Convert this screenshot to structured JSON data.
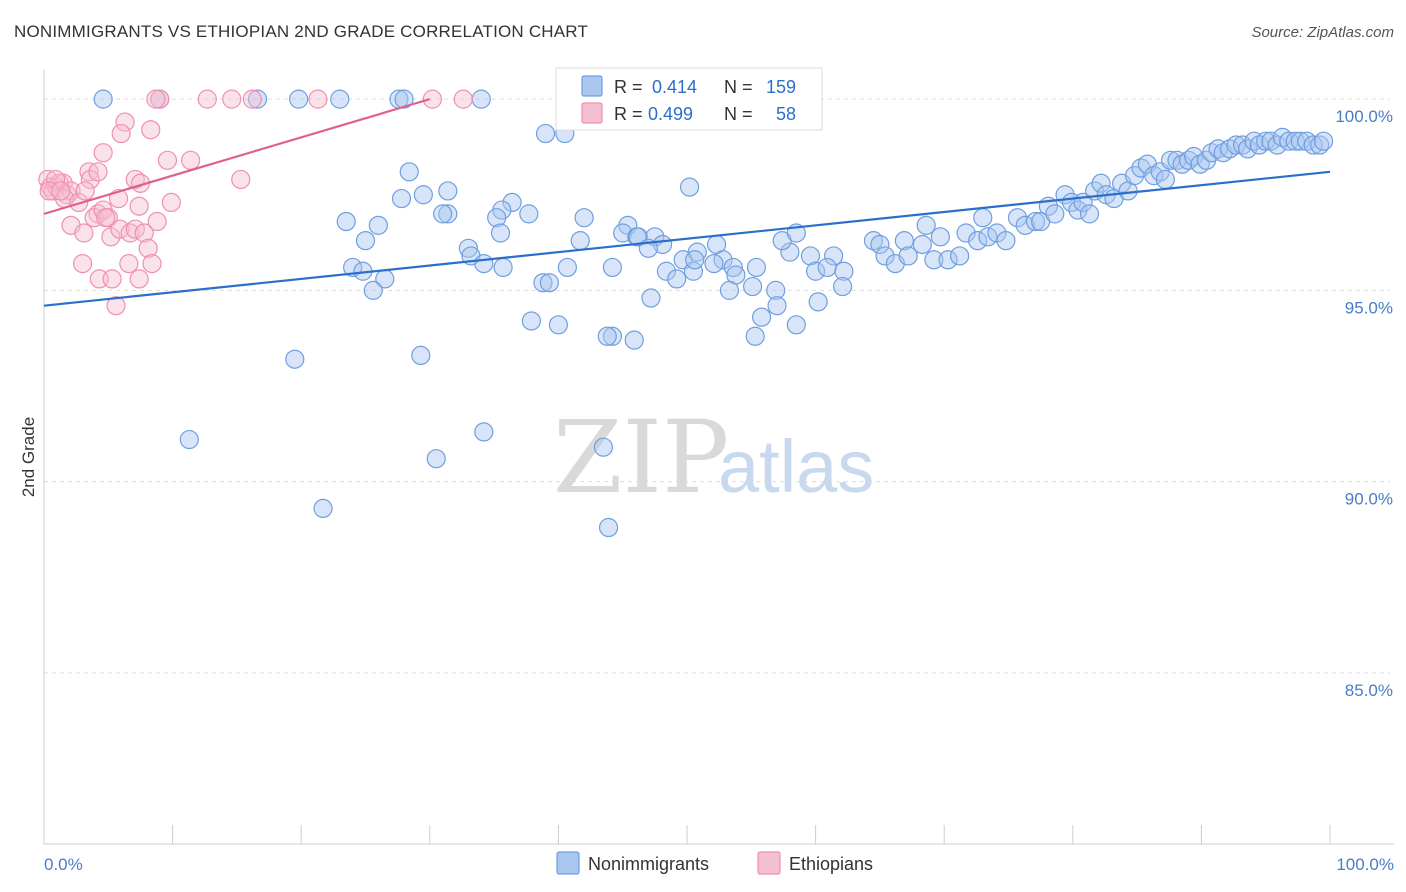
{
  "chart_data": {
    "type": "scatter",
    "title": "NONIMMIGRANTS VS ETHIOPIAN 2ND GRADE CORRELATION CHART",
    "source": "Source: ZipAtlas.com",
    "xlabel": "",
    "ylabel": "2nd Grade",
    "xlim": [
      0,
      100
    ],
    "ylim": [
      80.5,
      100.5
    ],
    "x_tick_labels": [
      "0.0%",
      "100.0%"
    ],
    "y_ticks": [
      {
        "value": 100,
        "label": "100.0%"
      },
      {
        "value": 95,
        "label": "95.0%"
      },
      {
        "value": 90,
        "label": "90.0%"
      },
      {
        "value": 85,
        "label": "85.0%"
      }
    ],
    "grid": true,
    "watermark": {
      "part1": "ZIP",
      "part2": "atlas"
    },
    "legend": {
      "r_label": "R =",
      "n_label": "N =",
      "entries": [
        {
          "name": "Nonimmigrants",
          "r": "0.414",
          "n": "159"
        },
        {
          "name": "Ethiopians",
          "r": "0.499",
          "n": "58"
        }
      ]
    },
    "series": [
      {
        "name": "Nonimmigrants",
        "color": "#6f9fe0",
        "fill": "#a9c6ef",
        "line_color": "#2a6fcc",
        "trend": {
          "x": [
            0,
            100
          ],
          "y": [
            94.6,
            98.1
          ]
        },
        "points": [
          [
            4.6,
            100
          ],
          [
            9,
            100
          ],
          [
            16.6,
            100
          ],
          [
            19.8,
            100
          ],
          [
            23,
            100
          ],
          [
            27.6,
            100
          ],
          [
            28,
            100
          ],
          [
            34,
            100
          ],
          [
            40.5,
            99.1
          ],
          [
            39,
            99.1
          ],
          [
            28.4,
            98.1
          ],
          [
            29.5,
            97.5
          ],
          [
            27.8,
            97.4
          ],
          [
            36.4,
            97.3
          ],
          [
            37.7,
            97.0
          ],
          [
            35.6,
            97.1
          ],
          [
            31.4,
            97.0
          ],
          [
            35.2,
            96.9
          ],
          [
            23.5,
            96.8
          ],
          [
            26.0,
            96.7
          ],
          [
            25.0,
            96.3
          ],
          [
            33.0,
            96.1
          ],
          [
            35.5,
            96.5
          ],
          [
            42,
            96.9
          ],
          [
            45.4,
            96.7
          ],
          [
            45,
            96.5
          ],
          [
            46.1,
            96.4
          ],
          [
            41.7,
            96.3
          ],
          [
            33.2,
            95.9
          ],
          [
            34.2,
            95.7
          ],
          [
            35.7,
            95.6
          ],
          [
            24.0,
            95.6
          ],
          [
            24.8,
            95.5
          ],
          [
            26.5,
            95.3
          ],
          [
            25.6,
            95.0
          ],
          [
            38.8,
            95.2
          ],
          [
            39.3,
            95.2
          ],
          [
            40.7,
            95.6
          ],
          [
            44.2,
            95.6
          ],
          [
            47.5,
            96.4
          ],
          [
            48.1,
            96.2
          ],
          [
            49.7,
            95.8
          ],
          [
            50.8,
            96.0
          ],
          [
            52.3,
            96.2
          ],
          [
            52.8,
            95.8
          ],
          [
            53.6,
            95.6
          ],
          [
            55.4,
            95.6
          ],
          [
            53.8,
            95.4
          ],
          [
            50.5,
            95.5
          ],
          [
            47.2,
            94.8
          ],
          [
            53.3,
            95.0
          ],
          [
            55.1,
            95.1
          ],
          [
            56.9,
            95.0
          ],
          [
            58.0,
            96.0
          ],
          [
            57.4,
            96.3
          ],
          [
            58.5,
            96.5
          ],
          [
            59.6,
            95.9
          ],
          [
            60.0,
            95.5
          ],
          [
            61.4,
            95.9
          ],
          [
            60.9,
            95.6
          ],
          [
            62.2,
            95.5
          ],
          [
            62.1,
            95.1
          ],
          [
            64.5,
            96.3
          ],
          [
            65.0,
            96.2
          ],
          [
            65.4,
            95.9
          ],
          [
            66.9,
            96.3
          ],
          [
            66.2,
            95.7
          ],
          [
            67.2,
            95.9
          ],
          [
            68.3,
            96.2
          ],
          [
            68.6,
            96.7
          ],
          [
            69.2,
            95.8
          ],
          [
            69.7,
            96.4
          ],
          [
            70.3,
            95.8
          ],
          [
            71.2,
            95.9
          ],
          [
            71.7,
            96.5
          ],
          [
            72.6,
            96.3
          ],
          [
            73.0,
            96.9
          ],
          [
            73.4,
            96.4
          ],
          [
            74.1,
            96.5
          ],
          [
            74.8,
            96.3
          ],
          [
            75.7,
            96.9
          ],
          [
            76.3,
            96.7
          ],
          [
            77.1,
            96.8
          ],
          [
            77.5,
            96.8
          ],
          [
            78.1,
            97.2
          ],
          [
            78.6,
            97.0
          ],
          [
            79.4,
            97.5
          ],
          [
            79.9,
            97.3
          ],
          [
            80.4,
            97.1
          ],
          [
            80.8,
            97.3
          ],
          [
            81.3,
            97.0
          ],
          [
            81.7,
            97.6
          ],
          [
            82.2,
            97.8
          ],
          [
            82.6,
            97.5
          ],
          [
            83.2,
            97.4
          ],
          [
            83.8,
            97.8
          ],
          [
            84.3,
            97.6
          ],
          [
            84.8,
            98.0
          ],
          [
            85.3,
            98.2
          ],
          [
            85.8,
            98.3
          ],
          [
            86.3,
            98.0
          ],
          [
            86.8,
            98.1
          ],
          [
            87.2,
            97.9
          ],
          [
            87.6,
            98.4
          ],
          [
            88.1,
            98.4
          ],
          [
            88.5,
            98.3
          ],
          [
            89.0,
            98.4
          ],
          [
            89.4,
            98.5
          ],
          [
            89.9,
            98.3
          ],
          [
            90.4,
            98.4
          ],
          [
            90.8,
            98.6
          ],
          [
            91.3,
            98.7
          ],
          [
            91.7,
            98.6
          ],
          [
            92.2,
            98.7
          ],
          [
            92.7,
            98.8
          ],
          [
            93.2,
            98.8
          ],
          [
            93.6,
            98.7
          ],
          [
            94.1,
            98.9
          ],
          [
            94.5,
            98.8
          ],
          [
            95.0,
            98.9
          ],
          [
            95.4,
            98.9
          ],
          [
            95.9,
            98.8
          ],
          [
            96.3,
            99.0
          ],
          [
            96.8,
            98.9
          ],
          [
            97.3,
            98.9
          ],
          [
            97.7,
            98.9
          ],
          [
            98.2,
            98.9
          ],
          [
            98.7,
            98.8
          ],
          [
            99.2,
            98.8
          ],
          [
            99.5,
            98.9
          ],
          [
            50.2,
            97.7
          ],
          [
            31.4,
            97.6
          ],
          [
            57.0,
            94.6
          ],
          [
            55.8,
            94.3
          ],
          [
            55.3,
            93.8
          ],
          [
            58.5,
            94.1
          ],
          [
            60.2,
            94.7
          ],
          [
            37.9,
            94.2
          ],
          [
            40.0,
            94.1
          ],
          [
            44.2,
            93.8
          ],
          [
            45.9,
            93.7
          ],
          [
            43.8,
            93.8
          ],
          [
            48.4,
            95.5
          ],
          [
            50.6,
            95.8
          ],
          [
            52.1,
            95.7
          ],
          [
            49.2,
            95.3
          ],
          [
            19.5,
            93.2
          ],
          [
            29.3,
            93.3
          ],
          [
            11.3,
            91.1
          ],
          [
            34.2,
            91.3
          ],
          [
            43.5,
            90.9
          ],
          [
            30.5,
            90.6
          ],
          [
            21.7,
            89.3
          ],
          [
            43.9,
            88.8
          ],
          [
            46.2,
            96.4
          ],
          [
            47.0,
            96.1
          ],
          [
            31.0,
            97.0
          ]
        ]
      },
      {
        "name": "Ethiopians",
        "color": "#f08fb0",
        "fill": "#f5bfd2",
        "line_color": "#e0608a",
        "trend": {
          "x": [
            0,
            30
          ],
          "y": [
            97.0,
            100.0
          ]
        },
        "points": [
          [
            9.0,
            100
          ],
          [
            8.7,
            100
          ],
          [
            12.7,
            100
          ],
          [
            14.6,
            100
          ],
          [
            16.2,
            100
          ],
          [
            21.3,
            100
          ],
          [
            30.2,
            100
          ],
          [
            32.6,
            100
          ],
          [
            6.3,
            99.4
          ],
          [
            6.0,
            99.1
          ],
          [
            8.3,
            99.2
          ],
          [
            4.6,
            98.6
          ],
          [
            9.6,
            98.4
          ],
          [
            11.4,
            98.4
          ],
          [
            3.5,
            98.1
          ],
          [
            3.6,
            97.9
          ],
          [
            4.2,
            98.1
          ],
          [
            7.1,
            97.9
          ],
          [
            7.5,
            97.8
          ],
          [
            15.3,
            97.9
          ],
          [
            0.3,
            97.9
          ],
          [
            0.5,
            97.7
          ],
          [
            0.7,
            97.6
          ],
          [
            1.0,
            97.7
          ],
          [
            1.2,
            97.8
          ],
          [
            1.5,
            97.8
          ],
          [
            1.8,
            97.5
          ],
          [
            2.1,
            97.6
          ],
          [
            0.9,
            97.9
          ],
          [
            1.6,
            97.4
          ],
          [
            2.7,
            97.3
          ],
          [
            3.2,
            97.6
          ],
          [
            4.2,
            97.0
          ],
          [
            5.8,
            97.4
          ],
          [
            7.4,
            97.2
          ],
          [
            9.9,
            97.3
          ],
          [
            3.9,
            96.9
          ],
          [
            4.6,
            97.1
          ],
          [
            5.0,
            96.9
          ],
          [
            8.8,
            96.8
          ],
          [
            2.1,
            96.7
          ],
          [
            3.1,
            96.5
          ],
          [
            5.2,
            96.4
          ],
          [
            5.9,
            96.6
          ],
          [
            6.7,
            96.5
          ],
          [
            7.1,
            96.6
          ],
          [
            7.8,
            96.5
          ],
          [
            8.1,
            96.1
          ],
          [
            3.0,
            95.7
          ],
          [
            6.6,
            95.7
          ],
          [
            7.4,
            95.3
          ],
          [
            8.4,
            95.7
          ],
          [
            4.3,
            95.3
          ],
          [
            5.3,
            95.3
          ],
          [
            5.6,
            94.6
          ],
          [
            4.8,
            96.9
          ],
          [
            0.4,
            97.6
          ],
          [
            1.3,
            97.6
          ]
        ]
      }
    ]
  }
}
